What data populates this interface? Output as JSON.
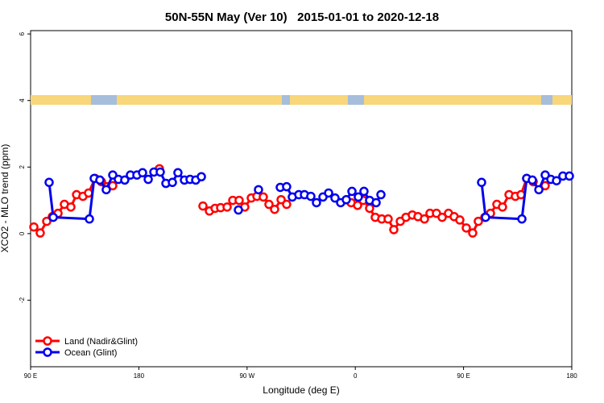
{
  "chart_data": {
    "type": "line",
    "title": "50N-55N May (Ver 10)   2015-01-01 to 2020-12-18",
    "xlabel": "Longitude (deg E)",
    "ylabel": "XCO2 - MLO trend (ppm)",
    "xlim": [
      90,
      540
    ],
    "ylim": [
      -4,
      6.1
    ],
    "xticks": [
      {
        "value": 90,
        "label": "90 E"
      },
      180,
      {
        "value": 270,
        "label": "90 W"
      },
      {
        "value": 360,
        "label": "0"
      },
      {
        "value": 450,
        "label": "90 E"
      },
      {
        "value": 540,
        "label": "180"
      }
    ],
    "yticks": [
      -2,
      0,
      2,
      4,
      6
    ],
    "legend": "bottom-left",
    "series": [
      {
        "name": "Land (Nadir&Glint)",
        "color": "#ff0000",
        "x": [
          92.7,
          98.0,
          103.4,
          108.1,
          112.8,
          118.1,
          123.5,
          128.2,
          133.5,
          138.2,
          143.6,
          148.9,
          153.6,
          158.3,
          null,
          197.1,
          null,
          233.3,
          238.7,
          243.4,
          248.0,
          253.4,
          258.1,
          263.4,
          268.1,
          273.5,
          278.2,
          283.5,
          288.2,
          292.9,
          298.3,
          302.9,
          null,
          356.5,
          361.9,
          366.6,
          371.9,
          376.6,
          382.0,
          387.3,
          392.0,
          397.4,
          402.1,
          407.4,
          412.1,
          417.5,
          422.1,
          427.5,
          432.2,
          437.5,
          442.2,
          446.9,
          452.3,
          457.6,
          462.3,
          467.7,
          472.4,
          477.7,
          482.4,
          487.8,
          493.1,
          497.8,
          502.5,
          507.9,
          null,
          517.9
        ],
        "values": [
          0.2,
          0.02,
          0.37,
          0.51,
          0.61,
          0.88,
          0.8,
          1.17,
          1.12,
          1.22,
          1.66,
          1.56,
          1.41,
          1.44,
          null,
          1.95,
          null,
          0.83,
          0.68,
          0.76,
          0.78,
          0.8,
          1.0,
          1.0,
          0.8,
          1.07,
          1.12,
          1.1,
          0.88,
          0.73,
          1.02,
          0.88,
          null,
          0.93,
          0.85,
          1.0,
          0.76,
          0.49,
          0.44,
          0.44,
          0.12,
          0.37,
          0.49,
          0.56,
          0.51,
          0.44,
          0.61,
          0.61,
          0.49,
          0.61,
          0.51,
          0.41,
          0.17,
          0.02,
          0.37,
          0.49,
          0.61,
          0.88,
          0.8,
          1.17,
          1.12,
          1.17,
          1.66,
          1.56,
          null,
          1.44
        ]
      },
      {
        "name": "Ocean (Glint)",
        "color": "#0000ee",
        "x": [
          105.4,
          108.8,
          138.9,
          142.9,
          147.6,
          152.9,
          158.3,
          163.0,
          168.3,
          173.0,
          178.4,
          183.1,
          187.8,
          192.5,
          197.8,
          202.5,
          207.9,
          212.5,
          217.9,
          222.6,
          227.3,
          232.0,
          null,
          262.8,
          null,
          279.5,
          null,
          297.6,
          302.9,
          307.6,
          313.0,
          317.7,
          323.0,
          327.7,
          333.1,
          337.8,
          343.1,
          347.8,
          352.5,
          357.2,
          362.5,
          367.2,
          371.9,
          377.3,
          381.3,
          null,
          465.0,
          468.3,
          498.5,
          502.5,
          507.2,
          512.6,
          517.9,
          522.6,
          527.3,
          532.6,
          538.0
        ],
        "values": [
          1.54,
          0.49,
          0.44,
          1.66,
          1.61,
          1.32,
          1.76,
          1.63,
          1.61,
          1.76,
          1.76,
          1.83,
          1.63,
          1.85,
          1.85,
          1.51,
          1.54,
          1.83,
          1.61,
          1.63,
          1.61,
          1.71,
          null,
          0.71,
          null,
          1.32,
          null,
          1.39,
          1.41,
          1.1,
          1.17,
          1.17,
          1.12,
          0.93,
          1.1,
          1.22,
          1.07,
          0.93,
          1.02,
          1.27,
          1.1,
          1.27,
          1.0,
          0.93,
          1.17,
          null,
          1.54,
          0.49,
          0.44,
          1.66,
          1.61,
          1.32,
          1.76,
          1.63,
          1.59,
          1.73,
          1.73
        ]
      }
    ]
  }
}
